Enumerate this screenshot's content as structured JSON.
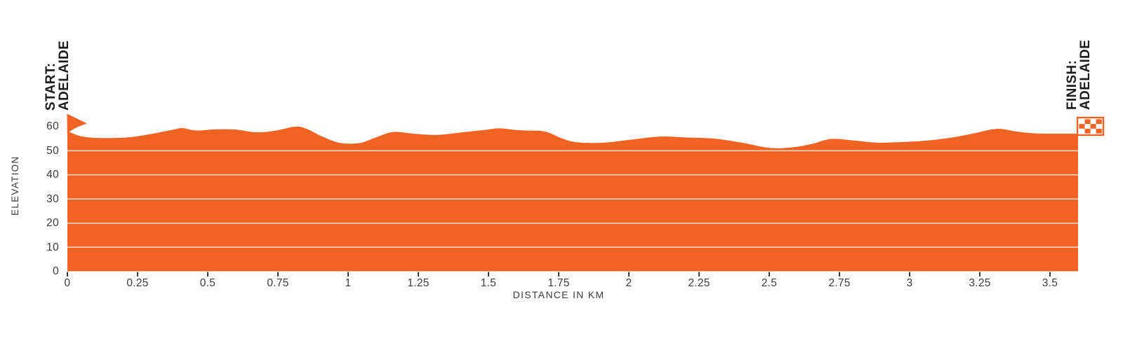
{
  "chart_data": {
    "type": "area",
    "title": "",
    "xlabel": "DISTANCE IN KM",
    "ylabel": "ELEVATION",
    "xlim": [
      0,
      3.6
    ],
    "ylim": [
      0,
      60
    ],
    "x_ticks": [
      0,
      0.25,
      0.5,
      0.75,
      1,
      1.25,
      1.5,
      1.75,
      2,
      2.25,
      2.5,
      2.75,
      3,
      3.25,
      3.5
    ],
    "x_tick_labels": [
      "0",
      "0.25",
      "0.5",
      "0.75",
      "1",
      "1.25",
      "1.5",
      "1.75",
      "2",
      "2.25",
      "2.5",
      "2.75",
      "3",
      "3.25",
      "3.5"
    ],
    "y_ticks": [
      0,
      10,
      20,
      30,
      40,
      50,
      60
    ],
    "y_tick_labels": [
      "0",
      "10",
      "20",
      "30",
      "40",
      "50",
      "60"
    ],
    "gridlines_y": [
      10,
      20,
      30,
      40,
      50
    ],
    "grid": "horizontal-only",
    "legend": "none",
    "series": [
      {
        "name": "elevation-profile",
        "x": [
          0.0,
          0.05,
          0.12,
          0.22,
          0.3,
          0.37,
          0.41,
          0.46,
          0.53,
          0.6,
          0.67,
          0.74,
          0.81,
          0.85,
          0.91,
          0.97,
          1.04,
          1.1,
          1.16,
          1.24,
          1.32,
          1.41,
          1.49,
          1.54,
          1.61,
          1.7,
          1.76,
          1.81,
          1.9,
          2.0,
          2.11,
          2.21,
          2.31,
          2.41,
          2.5,
          2.58,
          2.65,
          2.72,
          2.8,
          2.88,
          2.97,
          3.06,
          3.15,
          3.22,
          3.31,
          3.38,
          3.45,
          3.53,
          3.6
        ],
        "y": [
          58.2,
          56.0,
          55.3,
          55.6,
          57.0,
          58.6,
          59.4,
          58.4,
          58.9,
          58.8,
          57.7,
          58.3,
          60.0,
          59.2,
          55.8,
          53.3,
          53.2,
          55.6,
          57.8,
          57.0,
          56.6,
          57.7,
          58.7,
          59.3,
          58.5,
          58.0,
          55.2,
          53.6,
          53.3,
          54.5,
          55.9,
          55.5,
          55.0,
          53.2,
          51.2,
          51.4,
          52.8,
          54.9,
          54.3,
          53.4,
          53.6,
          54.2,
          55.5,
          57.0,
          59.1,
          58.0,
          57.2,
          57.1,
          57.1
        ]
      }
    ],
    "annotations": {
      "start": {
        "label_line1": "START:",
        "label_line2": "ADELAIDE",
        "marker": "pennant-flag",
        "x_km": 0
      },
      "finish": {
        "label_line1": "FINISH:",
        "label_line2": "ADELAIDE",
        "marker": "checkered-flag",
        "x_km": 3.6
      }
    },
    "colors": {
      "area": "#F16322",
      "gridline": "#FFFFFF",
      "label_text": "#1D1D1B",
      "axis_text": "#3A3A39",
      "tick_mark": "#3A3A39"
    }
  }
}
